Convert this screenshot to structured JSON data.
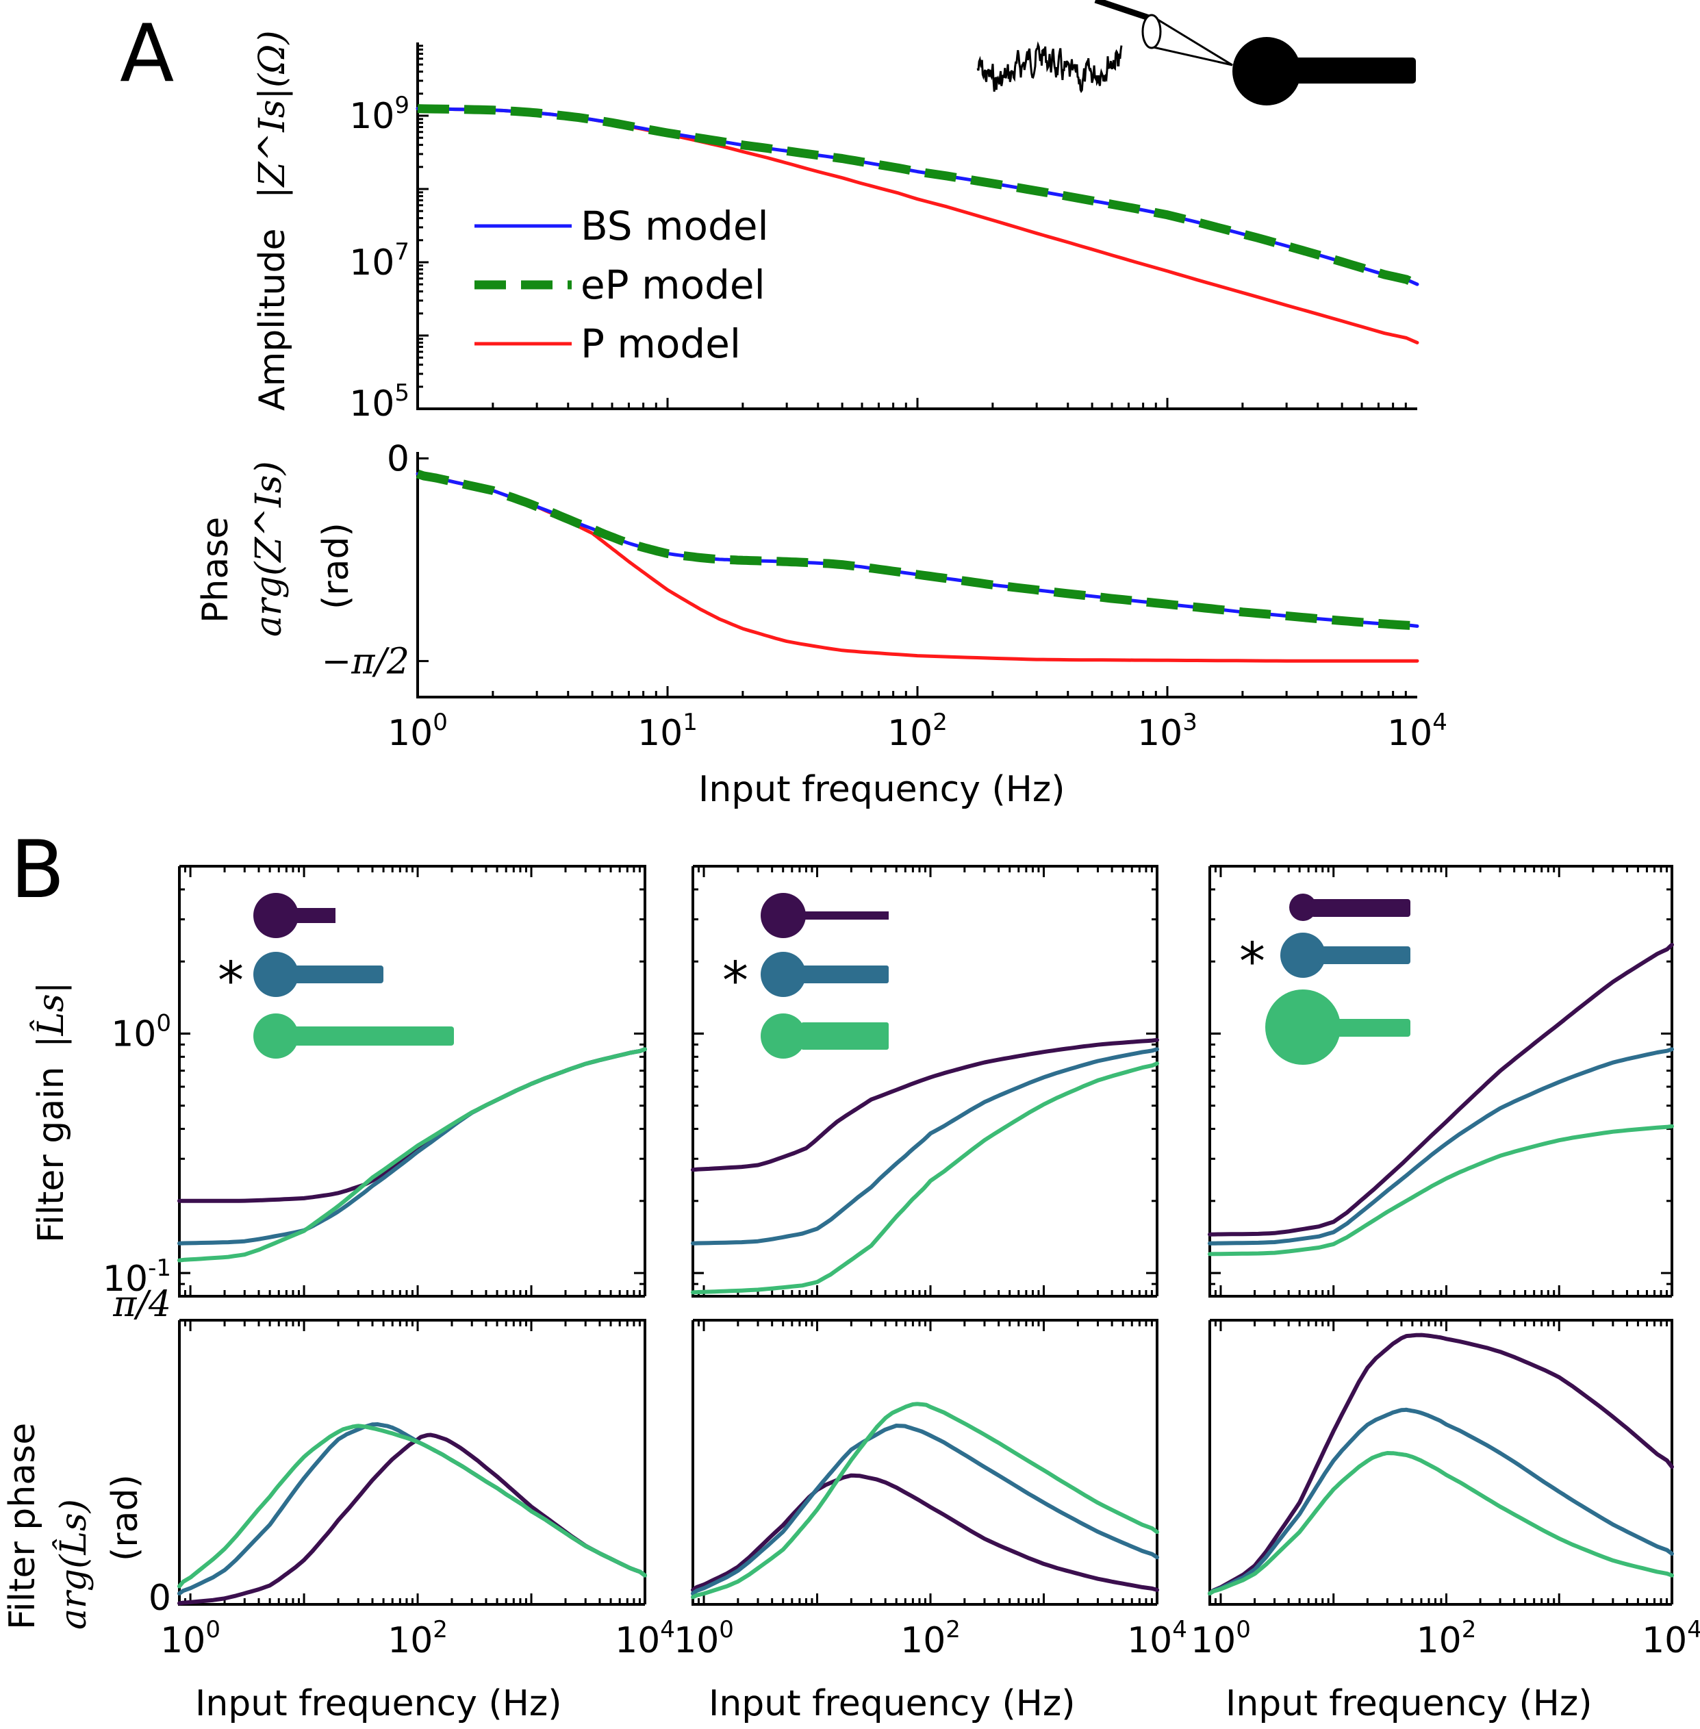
{
  "panel_labels": {
    "a": "A",
    "b": "B"
  },
  "colors": {
    "bs": "#1a1aff",
    "ep": "#148a14",
    "p": "#ff1a1a",
    "short": "#3b0f4e",
    "mid": "#2e6e8e",
    "long": "#3cbb75",
    "axis": "#000000"
  },
  "chart_data": [
    {
      "id": "A_amplitude",
      "type": "line",
      "xscale": "log",
      "yscale": "log",
      "xlim": [
        1,
        10000
      ],
      "ylim": [
        100000,
        10000000000
      ],
      "ylabel_text": "Amplitude",
      "ylabel_math": "|Z^Is|(Ω)",
      "yticks": [
        {
          "value": 1000000000,
          "label": "10^9"
        },
        {
          "value": 10000000,
          "label": "10^7"
        },
        {
          "value": 100000,
          "label": "10^5"
        }
      ],
      "legend": {
        "placement": "center-left",
        "entries": [
          "BS model",
          "eP model",
          "P model"
        ]
      },
      "series": [
        {
          "name": "BS model",
          "style": "solid",
          "x": [
            1,
            2,
            3,
            5,
            10,
            20,
            50,
            100,
            300,
            1000,
            3000,
            10000
          ],
          "y": [
            1250000000,
            1200000000,
            1100000000,
            900000000,
            580000000,
            400000000,
            260000000,
            175000000,
            95000000,
            45000000,
            17000000,
            5000000
          ]
        },
        {
          "name": "eP model",
          "style": "dashed",
          "x": [
            1,
            2,
            3,
            5,
            10,
            20,
            50,
            100,
            300,
            1000,
            3000,
            10000
          ],
          "y": [
            1250000000,
            1200000000,
            1100000000,
            900000000,
            580000000,
            400000000,
            260000000,
            175000000,
            95000000,
            45000000,
            17000000,
            5000000
          ]
        },
        {
          "name": "P model",
          "style": "solid",
          "x": [
            1,
            2,
            3,
            5,
            10,
            20,
            50,
            100,
            300,
            1000,
            3000,
            10000
          ],
          "y": [
            1250000000,
            1200000000,
            1100000000,
            900000000,
            560000000,
            330000000,
            140000000,
            75000000,
            25000000,
            7500000,
            2600000,
            800000
          ]
        }
      ]
    },
    {
      "id": "A_phase",
      "type": "line",
      "xscale": "log",
      "yscale": "linear",
      "xlim": [
        1,
        10000
      ],
      "ylim": [
        -1.85,
        0.05
      ],
      "xlabel": "Input frequency (Hz)",
      "ylabel_text": "Phase",
      "ylabel_math": "arg(Z^Is)",
      "ylabel_unit": "(rad)",
      "xticks": [
        {
          "value": 1,
          "label": "10^0"
        },
        {
          "value": 10,
          "label": "10^1"
        },
        {
          "value": 100,
          "label": "10^2"
        },
        {
          "value": 1000,
          "label": "10^3"
        },
        {
          "value": 10000,
          "label": "10^4"
        }
      ],
      "yticks": [
        {
          "value": 0,
          "label": "0"
        },
        {
          "value": -1.5708,
          "label": "−π/2"
        }
      ],
      "series": [
        {
          "name": "BS model",
          "style": "solid",
          "x": [
            1,
            2,
            3,
            5,
            7,
            10,
            15,
            20,
            30,
            50,
            100,
            200,
            500,
            1000,
            2000,
            5000,
            10000
          ],
          "y": [
            -0.12,
            -0.25,
            -0.37,
            -0.55,
            -0.66,
            -0.74,
            -0.78,
            -0.79,
            -0.8,
            -0.82,
            -0.9,
            -0.98,
            -1.07,
            -1.13,
            -1.19,
            -1.26,
            -1.3
          ]
        },
        {
          "name": "eP model",
          "style": "dashed",
          "x": [
            1,
            2,
            3,
            5,
            7,
            10,
            15,
            20,
            30,
            50,
            100,
            200,
            500,
            1000,
            2000,
            5000,
            10000
          ],
          "y": [
            -0.12,
            -0.25,
            -0.37,
            -0.55,
            -0.66,
            -0.74,
            -0.78,
            -0.79,
            -0.8,
            -0.82,
            -0.9,
            -0.98,
            -1.07,
            -1.13,
            -1.19,
            -1.26,
            -1.3
          ]
        },
        {
          "name": "P model",
          "style": "solid",
          "x": [
            1,
            2,
            3,
            5,
            7,
            10,
            15,
            20,
            30,
            50,
            100,
            300,
            1000,
            3000,
            10000
          ],
          "y": [
            -0.12,
            -0.25,
            -0.37,
            -0.58,
            -0.8,
            -1.02,
            -1.22,
            -1.32,
            -1.42,
            -1.49,
            -1.53,
            -1.56,
            -1.565,
            -1.57,
            -1.57
          ]
        }
      ]
    },
    {
      "id": "B1_gain",
      "type": "line",
      "xscale": "log",
      "yscale": "log",
      "xlim": [
        0.8,
        10000
      ],
      "ylim": [
        0.08,
        5
      ],
      "ylabel_text": "Filter gain",
      "ylabel_math": "|L̂s|",
      "yticks": [
        {
          "value": 1,
          "label": "10^0"
        },
        {
          "value": 0.1,
          "label": "10^-1"
        }
      ],
      "series": [
        {
          "name": "short",
          "x": [
            0.8,
            3,
            10,
            20,
            40,
            100,
            300,
            1000,
            3000,
            10000
          ],
          "y": [
            0.2,
            0.2,
            0.205,
            0.215,
            0.24,
            0.33,
            0.47,
            0.62,
            0.75,
            0.86
          ]
        },
        {
          "name": "mid",
          "x": [
            0.8,
            3,
            10,
            20,
            40,
            100,
            300,
            1000,
            3000,
            10000
          ],
          "y": [
            0.133,
            0.135,
            0.15,
            0.18,
            0.23,
            0.32,
            0.47,
            0.62,
            0.75,
            0.86
          ]
        },
        {
          "name": "long",
          "x": [
            0.8,
            3,
            10,
            20,
            40,
            100,
            300,
            1000,
            3000,
            10000
          ],
          "y": [
            0.113,
            0.118,
            0.15,
            0.19,
            0.25,
            0.34,
            0.47,
            0.62,
            0.75,
            0.86
          ]
        }
      ]
    },
    {
      "id": "B1_phase",
      "type": "line",
      "xscale": "log",
      "yscale": "linear",
      "xlim": [
        0.8,
        10000
      ],
      "ylim": [
        0,
        0.785
      ],
      "xlabel": "Input frequency (Hz)",
      "ylabel_text": "Filter phase",
      "ylabel_math": "arg(L̂s)",
      "ylabel_unit": "(rad)",
      "xticks": [
        {
          "value": 1,
          "label": "10^0"
        },
        {
          "value": 100,
          "label": "10^2"
        },
        {
          "value": 10000,
          "label": "10^4"
        }
      ],
      "yticks": [
        {
          "value": 0.785,
          "label": "π/4"
        },
        {
          "value": 0,
          "label": "0"
        }
      ],
      "series": [
        {
          "name": "short",
          "x": [
            0.8,
            2,
            5,
            10,
            20,
            50,
            100,
            130,
            200,
            400,
            1000,
            3000,
            10000
          ],
          "y": [
            0.003,
            0.015,
            0.05,
            0.12,
            0.23,
            0.38,
            0.46,
            0.47,
            0.45,
            0.38,
            0.27,
            0.16,
            0.08
          ]
        },
        {
          "name": "mid",
          "x": [
            0.8,
            2,
            5,
            10,
            20,
            40,
            60,
            100,
            200,
            500,
            1000,
            3000,
            10000
          ],
          "y": [
            0.03,
            0.09,
            0.22,
            0.35,
            0.46,
            0.5,
            0.49,
            0.45,
            0.4,
            0.32,
            0.26,
            0.16,
            0.08
          ]
        },
        {
          "name": "long",
          "x": [
            0.8,
            2,
            5,
            10,
            20,
            30,
            50,
            100,
            200,
            500,
            1000,
            3000,
            10000
          ],
          "y": [
            0.05,
            0.15,
            0.3,
            0.41,
            0.48,
            0.495,
            0.48,
            0.45,
            0.4,
            0.32,
            0.26,
            0.16,
            0.08
          ]
        }
      ]
    },
    {
      "id": "B2_gain",
      "type": "line",
      "xscale": "log",
      "yscale": "log",
      "xlim": [
        0.8,
        10000
      ],
      "ylim": [
        0.08,
        5
      ],
      "series": [
        {
          "name": "short",
          "x": [
            0.8,
            3,
            8,
            15,
            30,
            100,
            300,
            1000,
            3000,
            10000
          ],
          "y": [
            0.27,
            0.28,
            0.33,
            0.43,
            0.53,
            0.66,
            0.76,
            0.84,
            0.9,
            0.94
          ]
        },
        {
          "name": "mid",
          "x": [
            0.8,
            3,
            10,
            30,
            60,
            100,
            300,
            1000,
            3000,
            10000
          ],
          "y": [
            0.133,
            0.135,
            0.15,
            0.23,
            0.31,
            0.38,
            0.52,
            0.66,
            0.77,
            0.86
          ]
        },
        {
          "name": "long",
          "x": [
            0.8,
            3,
            10,
            30,
            60,
            100,
            300,
            1000,
            3000,
            10000
          ],
          "y": [
            0.083,
            0.085,
            0.09,
            0.13,
            0.19,
            0.24,
            0.36,
            0.51,
            0.64,
            0.75
          ]
        }
      ]
    },
    {
      "id": "B2_phase",
      "type": "line",
      "xscale": "log",
      "yscale": "linear",
      "xlim": [
        0.8,
        10000
      ],
      "ylim": [
        0,
        0.785
      ],
      "xlabel": "Input frequency (Hz)",
      "xticks": [
        {
          "value": 1,
          "label": "10^0"
        },
        {
          "value": 100,
          "label": "10^2"
        },
        {
          "value": 10000,
          "label": "10^4"
        }
      ],
      "series": [
        {
          "name": "short",
          "x": [
            0.8,
            2,
            5,
            10,
            20,
            40,
            100,
            300,
            1000,
            3000,
            10000
          ],
          "y": [
            0.04,
            0.1,
            0.22,
            0.32,
            0.36,
            0.34,
            0.27,
            0.18,
            0.11,
            0.07,
            0.04
          ]
        },
        {
          "name": "mid",
          "x": [
            0.8,
            2,
            5,
            10,
            20,
            50,
            100,
            300,
            1000,
            3000,
            10000
          ],
          "y": [
            0.03,
            0.09,
            0.2,
            0.32,
            0.43,
            0.5,
            0.47,
            0.38,
            0.28,
            0.2,
            0.13
          ]
        },
        {
          "name": "long",
          "x": [
            0.8,
            2,
            5,
            10,
            20,
            40,
            70,
            100,
            300,
            1000,
            3000,
            10000
          ],
          "y": [
            0.02,
            0.06,
            0.15,
            0.26,
            0.4,
            0.52,
            0.555,
            0.55,
            0.47,
            0.37,
            0.28,
            0.2
          ]
        }
      ]
    },
    {
      "id": "B3_gain",
      "type": "line",
      "xscale": "log",
      "yscale": "log",
      "xlim": [
        0.8,
        10000
      ],
      "ylim": [
        0.08,
        5
      ],
      "series": [
        {
          "name": "short",
          "x": [
            0.8,
            3,
            10,
            30,
            100,
            300,
            1000,
            3000,
            10000
          ],
          "y": [
            0.145,
            0.146,
            0.16,
            0.25,
            0.43,
            0.7,
            1.1,
            1.65,
            2.35
          ]
        },
        {
          "name": "mid",
          "x": [
            0.8,
            3,
            10,
            30,
            100,
            300,
            1000,
            3000,
            10000
          ],
          "y": [
            0.133,
            0.134,
            0.145,
            0.22,
            0.35,
            0.49,
            0.63,
            0.76,
            0.86
          ]
        },
        {
          "name": "long",
          "x": [
            0.8,
            3,
            10,
            30,
            100,
            300,
            1000,
            3000,
            10000
          ],
          "y": [
            0.12,
            0.121,
            0.13,
            0.18,
            0.25,
            0.31,
            0.36,
            0.39,
            0.41
          ]
        }
      ]
    },
    {
      "id": "B3_phase",
      "type": "line",
      "xscale": "log",
      "yscale": "linear",
      "xlim": [
        0.8,
        10000
      ],
      "ylim": [
        0,
        0.785
      ],
      "xlabel": "Input frequency (Hz)",
      "xticks": [
        {
          "value": 1,
          "label": "10^0"
        },
        {
          "value": 100,
          "label": "10^2"
        },
        {
          "value": 10000,
          "label": "10^4"
        }
      ],
      "series": [
        {
          "name": "short",
          "x": [
            0.8,
            2,
            5,
            10,
            20,
            40,
            60,
            100,
            300,
            1000,
            3000,
            10000
          ],
          "y": [
            0.03,
            0.1,
            0.28,
            0.48,
            0.66,
            0.74,
            0.745,
            0.735,
            0.7,
            0.63,
            0.52,
            0.38
          ]
        },
        {
          "name": "mid",
          "x": [
            0.8,
            2,
            5,
            10,
            20,
            40,
            60,
            100,
            300,
            1000,
            3000,
            10000
          ],
          "y": [
            0.03,
            0.09,
            0.25,
            0.4,
            0.5,
            0.54,
            0.53,
            0.5,
            0.42,
            0.31,
            0.22,
            0.14
          ]
        },
        {
          "name": "long",
          "x": [
            0.8,
            2,
            5,
            10,
            20,
            30,
            50,
            100,
            300,
            1000,
            3000,
            10000
          ],
          "y": [
            0.03,
            0.08,
            0.2,
            0.32,
            0.4,
            0.42,
            0.41,
            0.36,
            0.27,
            0.18,
            0.12,
            0.08
          ]
        }
      ]
    }
  ],
  "insets_b": [
    {
      "star": "*",
      "star_row": 1
    },
    {
      "star": "*",
      "star_row": 1
    },
    {
      "star": "*",
      "star_row": 1
    }
  ]
}
